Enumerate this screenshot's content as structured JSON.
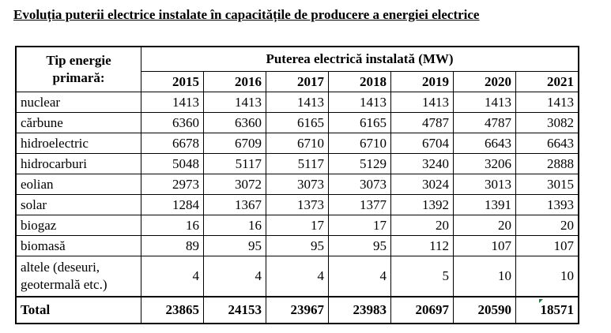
{
  "title": "Evoluția puterii electrice instalate în capacitățile de producere a energiei electrice",
  "header": {
    "type_label_line1": "Tip energie",
    "type_label_line2": "primară:",
    "group_label": "Puterea electrică instalată (MW)",
    "years": [
      "2015",
      "2016",
      "2017",
      "2018",
      "2019",
      "2020",
      "2021"
    ]
  },
  "rows": [
    {
      "label": "nuclear",
      "values": [
        "1413",
        "1413",
        "1413",
        "1413",
        "1413",
        "1413",
        "1413"
      ]
    },
    {
      "label": "cărbune",
      "values": [
        "6360",
        "6360",
        "6165",
        "6165",
        "4787",
        "4787",
        "3082"
      ]
    },
    {
      "label": "hidroelectric",
      "values": [
        "6678",
        "6709",
        "6710",
        "6710",
        "6704",
        "6643",
        "6643"
      ]
    },
    {
      "label": "hidrocarburi",
      "values": [
        "5048",
        "5117",
        "5117",
        "5129",
        "3240",
        "3206",
        "2888"
      ]
    },
    {
      "label": "eolian",
      "values": [
        "2973",
        "3072",
        "3073",
        "3073",
        "3024",
        "3013",
        "3015"
      ]
    },
    {
      "label": "solar",
      "values": [
        "1284",
        "1367",
        "1373",
        "1377",
        "1392",
        "1391",
        "1393"
      ]
    },
    {
      "label": "biogaz",
      "values": [
        "16",
        "16",
        "17",
        "17",
        "20",
        "20",
        "20"
      ]
    },
    {
      "label": "biomasă",
      "values": [
        "89",
        "95",
        "95",
        "95",
        "112",
        "107",
        "107"
      ]
    },
    {
      "label_line1": "altele (deseuri,",
      "label_line2": "geotermală etc.)",
      "values": [
        "4",
        "4",
        "4",
        "4",
        "5",
        "10",
        "10"
      ]
    }
  ],
  "total": {
    "label": "Total",
    "values": [
      "23865",
      "24153",
      "23967",
      "23983",
      "20697",
      "20590",
      "18571"
    ]
  }
}
